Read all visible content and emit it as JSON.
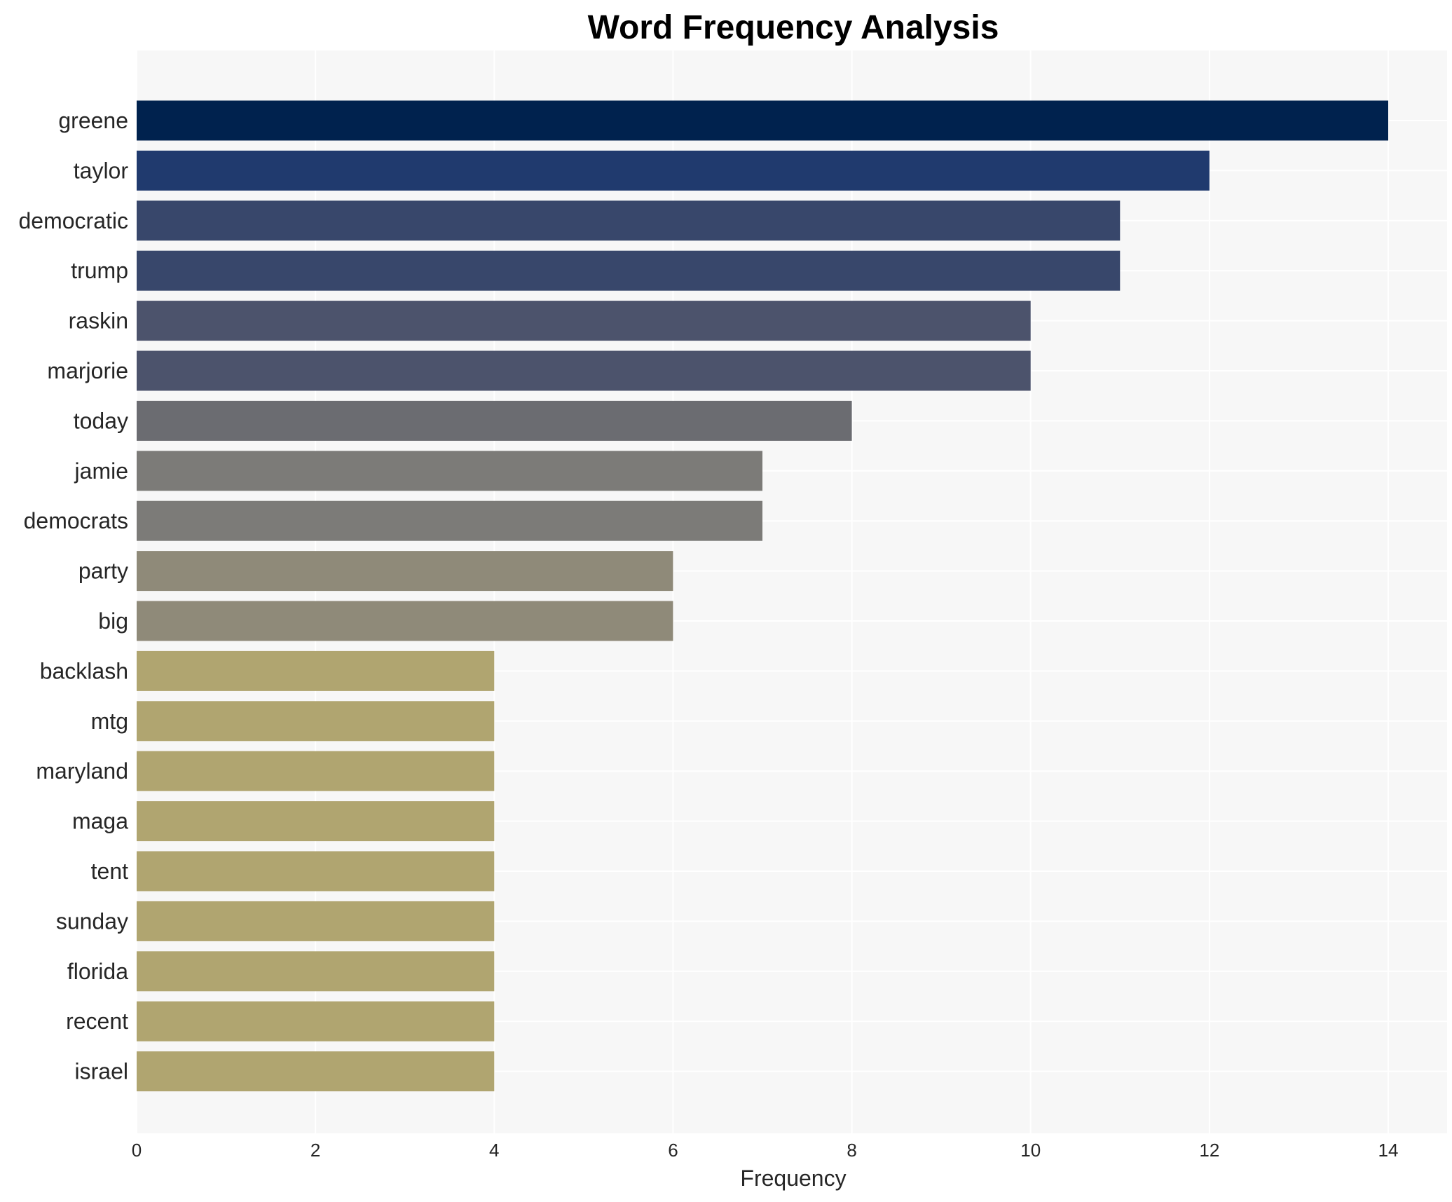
{
  "chart_data": {
    "type": "bar",
    "orientation": "horizontal",
    "title": "Word Frequency Analysis",
    "xlabel": "Frequency",
    "ylabel": "",
    "xlim": [
      0,
      14.7
    ],
    "xticks": [
      0,
      2,
      4,
      6,
      8,
      10,
      12,
      14
    ],
    "grid": true,
    "categories": [
      "greene",
      "taylor",
      "democratic",
      "trump",
      "raskin",
      "marjorie",
      "today",
      "jamie",
      "democrats",
      "party",
      "big",
      "backlash",
      "mtg",
      "maryland",
      "maga",
      "tent",
      "sunday",
      "florida",
      "recent",
      "israel"
    ],
    "values": [
      14,
      12,
      11,
      11,
      10,
      10,
      8,
      7,
      7,
      6,
      6,
      4,
      4,
      4,
      4,
      4,
      4,
      4,
      4,
      4
    ],
    "colors": [
      "#00224e",
      "#203a6e",
      "#38476b",
      "#38476b",
      "#4c536c",
      "#4c536c",
      "#6b6c71",
      "#7c7b78",
      "#7c7b78",
      "#8f8a79",
      "#8f8a79",
      "#b0a570",
      "#b0a570",
      "#b0a570",
      "#b0a570",
      "#b0a570",
      "#b0a570",
      "#b0a570",
      "#b0a570",
      "#b0a570"
    ],
    "background": "#f7f7f7",
    "grid_color": "#ffffff"
  }
}
